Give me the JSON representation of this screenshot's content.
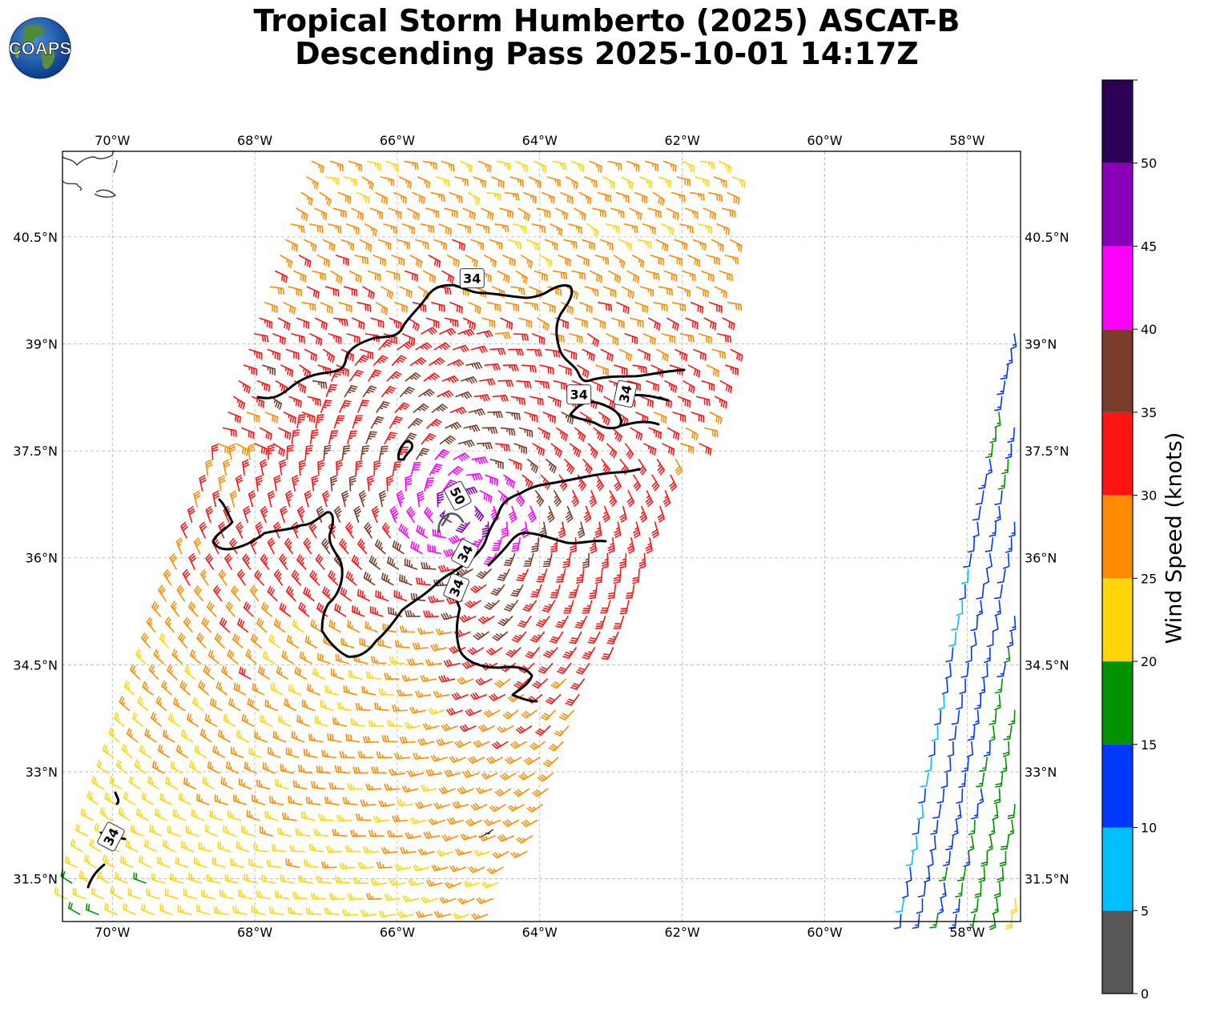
{
  "header": {
    "title_line1": "Tropical Storm Humberto (2025) ASCAT-B",
    "title_line2": "Descending Pass 2025-10-01 14:17Z",
    "logo_text": "COAPS"
  },
  "map": {
    "lon_range": [
      -70.7,
      -57.25
    ],
    "lat_range": [
      30.9,
      41.7
    ],
    "lon_ticks": [
      {
        "value": -70,
        "label": "70°W"
      },
      {
        "value": -68,
        "label": "68°W"
      },
      {
        "value": -66,
        "label": "66°W"
      },
      {
        "value": -64,
        "label": "64°W"
      },
      {
        "value": -62,
        "label": "62°W"
      },
      {
        "value": -60,
        "label": "60°W"
      },
      {
        "value": -58,
        "label": "58°W"
      }
    ],
    "lat_ticks": [
      {
        "value": 40.5,
        "label": "40.5°N"
      },
      {
        "value": 39,
        "label": "39°N"
      },
      {
        "value": 37.5,
        "label": "37.5°N"
      },
      {
        "value": 36,
        "label": "36°N"
      },
      {
        "value": 34.5,
        "label": "34.5°N"
      },
      {
        "value": 33,
        "label": "33°N"
      },
      {
        "value": 31.5,
        "label": "31.5°N"
      }
    ],
    "gridlines": true,
    "contour_labels": [
      {
        "text": "34",
        "lon": -64.95,
        "lat": 39.92,
        "angle": 0
      },
      {
        "text": "34",
        "lon": -63.45,
        "lat": 38.29,
        "angle": 0
      },
      {
        "text": "34",
        "lon": -62.8,
        "lat": 38.3,
        "angle": -78
      },
      {
        "text": "50",
        "lon": -65.15,
        "lat": 36.87,
        "angle": 62
      },
      {
        "text": "34",
        "lon": -65.05,
        "lat": 36.06,
        "angle": -62
      },
      {
        "text": "34",
        "lon": -65.17,
        "lat": 35.58,
        "angle": -68
      },
      {
        "text": "34",
        "lon": -70.02,
        "lat": 32.09,
        "angle": -62
      }
    ]
  },
  "colorbar": {
    "label": "Wind Speed (knots)",
    "range": [
      0,
      55
    ],
    "bins": [
      {
        "from": 0,
        "to": 5,
        "color": "#575757"
      },
      {
        "from": 5,
        "to": 10,
        "color": "#00bfff"
      },
      {
        "from": 10,
        "to": 15,
        "color": "#0038ff"
      },
      {
        "from": 15,
        "to": 20,
        "color": "#009200"
      },
      {
        "from": 20,
        "to": 25,
        "color": "#ffd60a"
      },
      {
        "from": 25,
        "to": 30,
        "color": "#ff8c00"
      },
      {
        "from": 30,
        "to": 35,
        "color": "#ff1414"
      },
      {
        "from": 35,
        "to": 40,
        "color": "#7a3d2a"
      },
      {
        "from": 40,
        "to": 45,
        "color": "#ff00ff"
      },
      {
        "from": 45,
        "to": 50,
        "color": "#8a00b8"
      },
      {
        "from": 50,
        "to": 55,
        "color": "#2c0055"
      }
    ],
    "tick_labels": [
      "0",
      "5",
      "10",
      "15",
      "20",
      "25",
      "30",
      "35",
      "40",
      "45",
      "50"
    ]
  }
}
